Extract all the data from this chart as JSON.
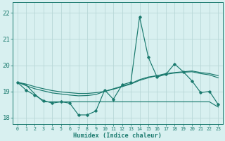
{
  "xlabel": "Humidex (Indice chaleur)",
  "x": [
    0,
    1,
    2,
    3,
    4,
    5,
    6,
    7,
    8,
    9,
    10,
    11,
    12,
    13,
    14,
    15,
    16,
    17,
    18,
    19,
    20,
    21,
    22,
    23
  ],
  "line1": [
    19.35,
    19.05,
    18.85,
    18.65,
    18.55,
    18.6,
    18.55,
    18.1,
    18.1,
    18.25,
    19.05,
    18.7,
    19.25,
    19.35,
    21.85,
    20.3,
    19.55,
    19.65,
    20.05,
    19.75,
    19.4,
    18.95,
    19.0,
    18.5
  ],
  "line2": [
    19.35,
    19.28,
    19.18,
    19.1,
    19.03,
    18.98,
    18.95,
    18.92,
    18.92,
    18.95,
    19.0,
    19.08,
    19.18,
    19.28,
    19.42,
    19.52,
    19.6,
    19.68,
    19.72,
    19.75,
    19.78,
    19.72,
    19.68,
    19.6
  ],
  "line3": [
    19.35,
    19.22,
    19.1,
    19.02,
    18.94,
    18.9,
    18.86,
    18.83,
    18.84,
    18.88,
    19.0,
    19.1,
    19.2,
    19.3,
    19.45,
    19.55,
    19.6,
    19.65,
    19.7,
    19.73,
    19.75,
    19.68,
    19.63,
    19.52
  ],
  "line4": [
    19.35,
    19.25,
    18.9,
    18.6,
    18.6,
    18.6,
    18.6,
    18.6,
    18.6,
    18.6,
    18.6,
    18.6,
    18.6,
    18.6,
    18.6,
    18.6,
    18.6,
    18.6,
    18.6,
    18.6,
    18.6,
    18.6,
    18.6,
    18.4
  ],
  "line_color": "#1a7a6e",
  "background_color": "#d8f0f0",
  "grid_color": "#b8d8d8",
  "ylim": [
    17.75,
    22.4
  ],
  "yticks": [
    18,
    19,
    20,
    21,
    22
  ],
  "xticks": [
    0,
    1,
    2,
    3,
    4,
    5,
    6,
    7,
    8,
    9,
    10,
    11,
    12,
    13,
    14,
    15,
    16,
    17,
    18,
    19,
    20,
    21,
    22,
    23
  ]
}
